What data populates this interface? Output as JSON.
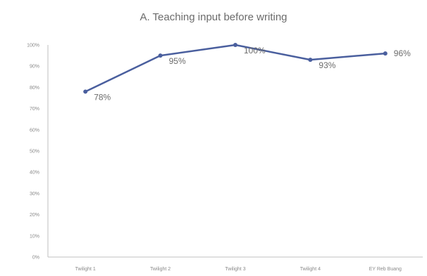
{
  "chart_data": {
    "type": "line",
    "title": "A. Teaching input before writing",
    "categories": [
      "Twilight 1",
      "Twilight 2",
      "Twilight 3",
      "Twilight 4",
      "EY Reb Buang"
    ],
    "series": [
      {
        "values": [
          78,
          95,
          100,
          93,
          96
        ]
      }
    ],
    "data_labels": [
      "78%",
      "95%",
      "100%",
      "93%",
      "96%"
    ],
    "y_ticks": [
      "0%",
      "10%",
      "20%",
      "30%",
      "40%",
      "50%",
      "60%",
      "70%",
      "80%",
      "90%",
      "100%"
    ],
    "ylim": [
      0,
      100
    ],
    "xlabel": "",
    "ylabel": "",
    "grid": false,
    "legend": "none",
    "line_color": "#4a5f9e"
  }
}
